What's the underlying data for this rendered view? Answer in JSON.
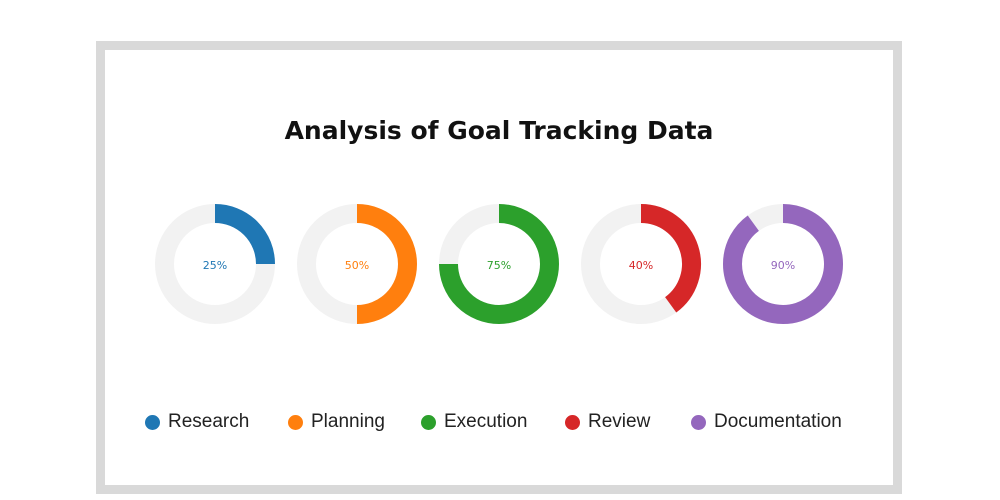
{
  "chart_data": {
    "type": "donut",
    "title": "Analysis of Goal Tracking Data",
    "max": 100,
    "track_color": "#f2f2f2",
    "legend_position": "bottom",
    "series": [
      {
        "name": "Research",
        "value": 25,
        "label": "25%",
        "color": "#1f77b4"
      },
      {
        "name": "Planning",
        "value": 50,
        "label": "50%",
        "color": "#ff7f0e"
      },
      {
        "name": "Execution",
        "value": 75,
        "label": "75%",
        "color": "#2ca02c"
      },
      {
        "name": "Review",
        "value": 40,
        "label": "40%",
        "color": "#d62728"
      },
      {
        "name": "Documentation",
        "value": 90,
        "label": "90%",
        "color": "#9467bd"
      }
    ]
  }
}
